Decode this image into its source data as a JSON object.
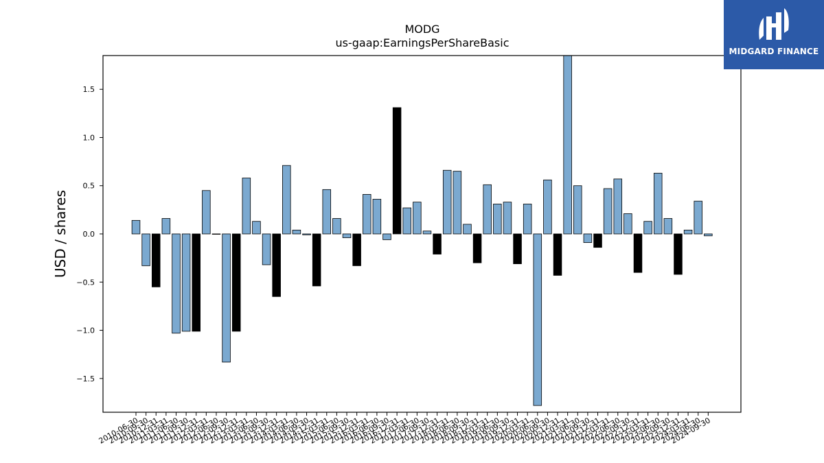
{
  "brand": {
    "name": "MIDGARD FINANCE"
  },
  "chart_data": {
    "type": "bar",
    "title": "MODG",
    "subtitle": "us-gaap:EarningsPerShareBasic",
    "xlabel": "",
    "ylabel": "USD / shares",
    "ylim": [
      -1.85,
      1.85
    ],
    "yticks": [
      -1.5,
      -1.0,
      -0.5,
      0.0,
      0.5,
      1.0,
      1.5
    ],
    "ytick_labels": [
      "−1.5",
      "−1.0",
      "−0.5",
      "0.0",
      "0.5",
      "1.0",
      "1.5"
    ],
    "grid": false,
    "legend": "none",
    "colors": {
      "quarterly": "#7ba9d0",
      "annual": "#000000",
      "edge": "#000000"
    },
    "categories": [
      "2010-06-30",
      "2010-09-30",
      "2010-12-31",
      "2011-03-31",
      "2011-06-30",
      "2011-09-30",
      "2011-12-31",
      "2012-03-31",
      "2012-06-30",
      "2012-09-30",
      "2012-12-31",
      "2013-03-31",
      "2013-06-30",
      "2013-09-30",
      "2013-12-31",
      "2014-03-31",
      "2014-06-30",
      "2014-09-30",
      "2014-12-31",
      "2015-03-31",
      "2015-06-30",
      "2015-09-30",
      "2015-12-31",
      "2016-03-31",
      "2016-06-30",
      "2016-09-30",
      "2016-12-31",
      "2017-03-31",
      "2017-06-30",
      "2017-09-30",
      "2017-12-31",
      "2018-03-31",
      "2018-06-30",
      "2018-09-30",
      "2018-12-31",
      "2019-03-31",
      "2019-06-30",
      "2019-09-30",
      "2019-12-31",
      "2020-03-31",
      "2020-06-30",
      "2020-09-30",
      "2020-12-31",
      "2021-03-31",
      "2021-06-30",
      "2021-09-30",
      "2021-12-31",
      "2022-03-31",
      "2022-06-30",
      "2022-09-30",
      "2022-12-31",
      "2023-03-31",
      "2023-06-30",
      "2023-09-30",
      "2023-12-31",
      "2024-03-31",
      "2024-06-30",
      "2024-09-30"
    ],
    "values": [
      0.14,
      -0.33,
      -0.55,
      0.16,
      -1.03,
      -1.01,
      -1.01,
      0.45,
      0.0,
      -1.33,
      -1.01,
      0.58,
      0.13,
      -0.32,
      -0.65,
      0.71,
      0.04,
      -0.01,
      -0.54,
      0.46,
      0.16,
      -0.04,
      -0.33,
      0.41,
      0.36,
      -0.06,
      1.31,
      0.27,
      0.33,
      0.03,
      -0.21,
      0.66,
      0.65,
      0.1,
      -0.3,
      0.51,
      0.31,
      0.33,
      -0.31,
      0.31,
      -1.78,
      0.56,
      -0.43,
      1.85,
      0.5,
      -0.09,
      -0.14,
      0.47,
      0.57,
      0.21,
      -0.4,
      0.13,
      0.63,
      0.16,
      -0.42,
      0.04,
      0.34,
      -0.02
    ],
    "annual": [
      false,
      false,
      true,
      false,
      false,
      false,
      true,
      false,
      false,
      false,
      true,
      false,
      false,
      false,
      true,
      false,
      false,
      false,
      true,
      false,
      false,
      false,
      true,
      false,
      false,
      false,
      true,
      false,
      false,
      false,
      true,
      false,
      false,
      false,
      true,
      false,
      false,
      false,
      true,
      false,
      false,
      false,
      true,
      false,
      false,
      false,
      true,
      false,
      false,
      false,
      true,
      false,
      false,
      false,
      true,
      false,
      false,
      false
    ]
  }
}
